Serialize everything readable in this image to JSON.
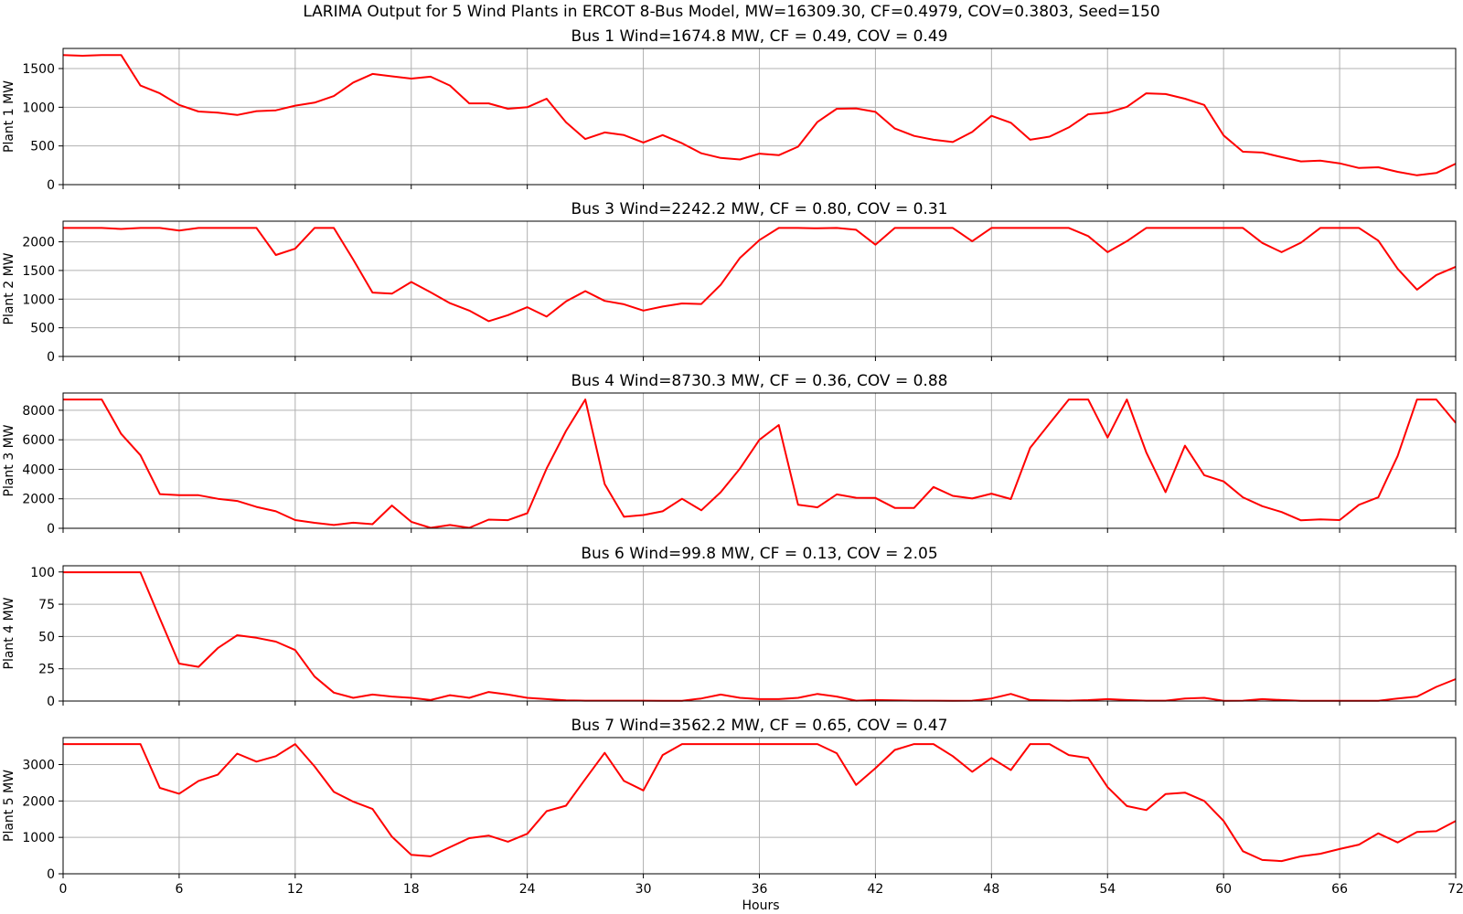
{
  "figure": {
    "suptitle": "LARIMA Output for 5 Wind Plants in ERCOT 8-Bus Model, MW=16309.30, CF=0.4979, COV=0.3803, Seed=150",
    "xlabel": "Hours",
    "line_color": "#ff0000"
  },
  "chart_data": [
    {
      "type": "line",
      "title": "Bus 1 Wind=1674.8 MW, CF = 0.49, COV = 0.49",
      "ylabel": "Plant 1 MW",
      "xlim": [
        0,
        72
      ],
      "ylim": [
        0,
        1760
      ],
      "xticks": [
        0,
        6,
        12,
        18,
        24,
        30,
        36,
        42,
        48,
        54,
        60,
        66,
        72
      ],
      "yticks": [
        0,
        500,
        1000,
        1500
      ],
      "xtick_labels_visible": false,
      "grid": true,
      "x": [
        0,
        1,
        2,
        3,
        4,
        5,
        6,
        7,
        8,
        9,
        10,
        11,
        12,
        13,
        14,
        15,
        16,
        17,
        18,
        19,
        20,
        21,
        22,
        23,
        24,
        25,
        26,
        27,
        28,
        29,
        30,
        31,
        32,
        33,
        34,
        35,
        36,
        37,
        38,
        39,
        40,
        41,
        42,
        43,
        44,
        45,
        46,
        47,
        48,
        49,
        50,
        51,
        52,
        53,
        54,
        55,
        56,
        57,
        58,
        59,
        60,
        61,
        62,
        63,
        64,
        65,
        66,
        67,
        68,
        69,
        70,
        71,
        72
      ],
      "values": [
        1675,
        1665,
        1675,
        1675,
        1280,
        1180,
        1030,
        945,
        930,
        900,
        950,
        960,
        1020,
        1060,
        1145,
        1320,
        1430,
        1400,
        1370,
        1395,
        1280,
        1050,
        1050,
        980,
        1000,
        1110,
        805,
        590,
        675,
        640,
        545,
        640,
        535,
        405,
        345,
        325,
        400,
        380,
        490,
        810,
        980,
        985,
        940,
        725,
        630,
        580,
        550,
        680,
        890,
        800,
        580,
        620,
        740,
        910,
        930,
        1005,
        1180,
        1170,
        1110,
        1030,
        635,
        425,
        415,
        355,
        300,
        310,
        275,
        215,
        225,
        165,
        120,
        150,
        270
      ],
      "series": [
        {
          "color": "#ff0000"
        }
      ]
    },
    {
      "type": "line",
      "title": "Bus 3 Wind=2242.2 MW, CF = 0.80, COV = 0.31",
      "ylabel": "Plant 2 MW",
      "xlim": [
        0,
        72
      ],
      "ylim": [
        0,
        2360
      ],
      "xticks": [
        0,
        6,
        12,
        18,
        24,
        30,
        36,
        42,
        48,
        54,
        60,
        66,
        72
      ],
      "yticks": [
        0,
        500,
        1000,
        1500,
        2000
      ],
      "xtick_labels_visible": false,
      "grid": true,
      "x": [
        0,
        1,
        2,
        3,
        4,
        5,
        6,
        7,
        8,
        9,
        10,
        11,
        12,
        13,
        14,
        15,
        16,
        17,
        18,
        19,
        20,
        21,
        22,
        23,
        24,
        25,
        26,
        27,
        28,
        29,
        30,
        31,
        32,
        33,
        34,
        35,
        36,
        37,
        38,
        39,
        40,
        41,
        42,
        43,
        44,
        45,
        46,
        47,
        48,
        49,
        50,
        51,
        52,
        53,
        54,
        55,
        56,
        57,
        58,
        59,
        60,
        61,
        62,
        63,
        64,
        65,
        66,
        67,
        68,
        69,
        70,
        71,
        72
      ],
      "values": [
        2242,
        2242,
        2242,
        2225,
        2242,
        2242,
        2195,
        2242,
        2242,
        2242,
        2242,
        1770,
        1880,
        2242,
        2242,
        1690,
        1115,
        1095,
        1300,
        1120,
        930,
        800,
        615,
        720,
        860,
        695,
        960,
        1140,
        970,
        910,
        800,
        870,
        925,
        915,
        1250,
        1720,
        2030,
        2242,
        2242,
        2235,
        2242,
        2210,
        1950,
        2242,
        2242,
        2242,
        2242,
        2010,
        2242,
        2242,
        2242,
        2242,
        2242,
        2100,
        1820,
        2010,
        2242,
        2242,
        2242,
        2242,
        2242,
        2242,
        1980,
        1820,
        1985,
        2242,
        2242,
        2242,
        2020,
        1530,
        1165,
        1420,
        1565
      ],
      "series": [
        {
          "color": "#ff0000"
        }
      ]
    },
    {
      "type": "line",
      "title": "Bus 4 Wind=8730.3 MW, CF = 0.36, COV = 0.88",
      "ylabel": "Plant 3 MW",
      "xlim": [
        0,
        72
      ],
      "ylim": [
        0,
        9170
      ],
      "xticks": [
        0,
        6,
        12,
        18,
        24,
        30,
        36,
        42,
        48,
        54,
        60,
        66,
        72
      ],
      "yticks": [
        0,
        2000,
        4000,
        6000,
        8000
      ],
      "xtick_labels_visible": false,
      "grid": true,
      "x": [
        0,
        1,
        2,
        3,
        4,
        5,
        6,
        7,
        8,
        9,
        10,
        11,
        12,
        13,
        14,
        15,
        16,
        17,
        18,
        19,
        20,
        21,
        22,
        23,
        24,
        25,
        26,
        27,
        28,
        29,
        30,
        31,
        32,
        33,
        34,
        35,
        36,
        37,
        38,
        39,
        40,
        41,
        42,
        43,
        44,
        45,
        46,
        47,
        48,
        49,
        50,
        51,
        52,
        53,
        54,
        55,
        56,
        57,
        58,
        59,
        60,
        61,
        62,
        63,
        64,
        65,
        66,
        67,
        68,
        69,
        70,
        71,
        72
      ],
      "values": [
        8730,
        8730,
        8730,
        6400,
        4950,
        2320,
        2250,
        2240,
        2000,
        1850,
        1450,
        1150,
        560,
        370,
        220,
        380,
        280,
        1540,
        440,
        30,
        220,
        30,
        590,
        550,
        1020,
        4050,
        6600,
        8730,
        3000,
        780,
        900,
        1150,
        2000,
        1220,
        2450,
        4050,
        6000,
        7000,
        1600,
        1420,
        2300,
        2070,
        2060,
        1380,
        1380,
        2800,
        2200,
        2020,
        2350,
        1980,
        5450,
        7100,
        8730,
        8730,
        6150,
        8730,
        5150,
        2450,
        5600,
        3600,
        3180,
        2100,
        1500,
        1100,
        540,
        600,
        560,
        1590,
        2100,
        4900,
        8730,
        8730,
        7150
      ],
      "series": [
        {
          "color": "#ff0000"
        }
      ]
    },
    {
      "type": "line",
      "title": "Bus 6 Wind=99.8 MW, CF = 0.13, COV = 2.05",
      "ylabel": "Plant 4 MW",
      "xlim": [
        0,
        72
      ],
      "ylim": [
        0,
        104.8
      ],
      "xticks": [
        0,
        6,
        12,
        18,
        24,
        30,
        36,
        42,
        48,
        54,
        60,
        66,
        72
      ],
      "yticks": [
        0,
        25,
        50,
        75,
        100
      ],
      "xtick_labels_visible": false,
      "grid": true,
      "x": [
        0,
        1,
        2,
        3,
        4,
        5,
        6,
        7,
        8,
        9,
        10,
        11,
        12,
        13,
        14,
        15,
        16,
        17,
        18,
        19,
        20,
        21,
        22,
        23,
        24,
        25,
        26,
        27,
        28,
        29,
        30,
        31,
        32,
        33,
        34,
        35,
        36,
        37,
        38,
        39,
        40,
        41,
        42,
        43,
        44,
        45,
        46,
        47,
        48,
        49,
        50,
        51,
        52,
        53,
        54,
        55,
        56,
        57,
        58,
        59,
        60,
        61,
        62,
        63,
        64,
        65,
        66,
        67,
        68,
        69,
        70,
        71,
        72
      ],
      "values": [
        99.8,
        99.8,
        99.8,
        99.8,
        99.8,
        64,
        29,
        26.5,
        41,
        51,
        49,
        46,
        39.5,
        19,
        6.5,
        2.5,
        5,
        3.5,
        2.5,
        0.8,
        4.5,
        2.5,
        7,
        5,
        2.5,
        1.5,
        0.5,
        0.3,
        0.3,
        0.3,
        0.3,
        0.2,
        0.2,
        2,
        5,
        2.5,
        1.5,
        1.5,
        2.5,
        5.5,
        3.5,
        0.3,
        0.8,
        0.5,
        0.3,
        0.3,
        0.2,
        0.3,
        2,
        5.5,
        0.8,
        0.4,
        0.3,
        0.7,
        1.5,
        0.8,
        0.3,
        0.3,
        2,
        2.5,
        0.2,
        0.3,
        1.5,
        0.8,
        0.2,
        0.2,
        0.2,
        0.2,
        0.2,
        2,
        3.5,
        11,
        17
      ],
      "series": [
        {
          "color": "#ff0000"
        }
      ]
    },
    {
      "type": "line",
      "title": "Bus 7 Wind=3562.2 MW, CF = 0.65, COV = 0.47",
      "ylabel": "Plant 5 MW",
      "xlim": [
        0,
        72
      ],
      "ylim": [
        0,
        3740
      ],
      "xticks": [
        0,
        6,
        12,
        18,
        24,
        30,
        36,
        42,
        48,
        54,
        60,
        66,
        72
      ],
      "xtick_labels": [
        "0",
        "6",
        "12",
        "18",
        "24",
        "30",
        "36",
        "42",
        "48",
        "54",
        "60",
        "66",
        "72"
      ],
      "yticks": [
        0,
        1000,
        2000,
        3000
      ],
      "xtick_labels_visible": true,
      "grid": true,
      "x": [
        0,
        1,
        2,
        3,
        4,
        5,
        6,
        7,
        8,
        9,
        10,
        11,
        12,
        13,
        14,
        15,
        16,
        17,
        18,
        19,
        20,
        21,
        22,
        23,
        24,
        25,
        26,
        27,
        28,
        29,
        30,
        31,
        32,
        33,
        34,
        35,
        36,
        37,
        38,
        39,
        40,
        41,
        42,
        43,
        44,
        45,
        46,
        47,
        48,
        49,
        50,
        51,
        52,
        53,
        54,
        55,
        56,
        57,
        58,
        59,
        60,
        61,
        62,
        63,
        64,
        65,
        66,
        67,
        68,
        69,
        70,
        71,
        72
      ],
      "values": [
        3562,
        3562,
        3562,
        3562,
        3562,
        2360,
        2200,
        2550,
        2720,
        3300,
        3080,
        3230,
        3562,
        2950,
        2250,
        1980,
        1780,
        1020,
        520,
        480,
        730,
        980,
        1050,
        880,
        1100,
        1720,
        1870,
        2600,
        3320,
        2550,
        2290,
        3260,
        3562,
        3562,
        3562,
        3562,
        3562,
        3562,
        3562,
        3562,
        3310,
        2440,
        2900,
        3400,
        3562,
        3562,
        3230,
        2800,
        3180,
        2850,
        3562,
        3562,
        3260,
        3180,
        2380,
        1860,
        1750,
        2190,
        2230,
        2000,
        1450,
        620,
        380,
        350,
        480,
        550,
        680,
        800,
        1110,
        860,
        1150,
        1170,
        1450
      ],
      "series": [
        {
          "color": "#ff0000"
        }
      ]
    }
  ]
}
